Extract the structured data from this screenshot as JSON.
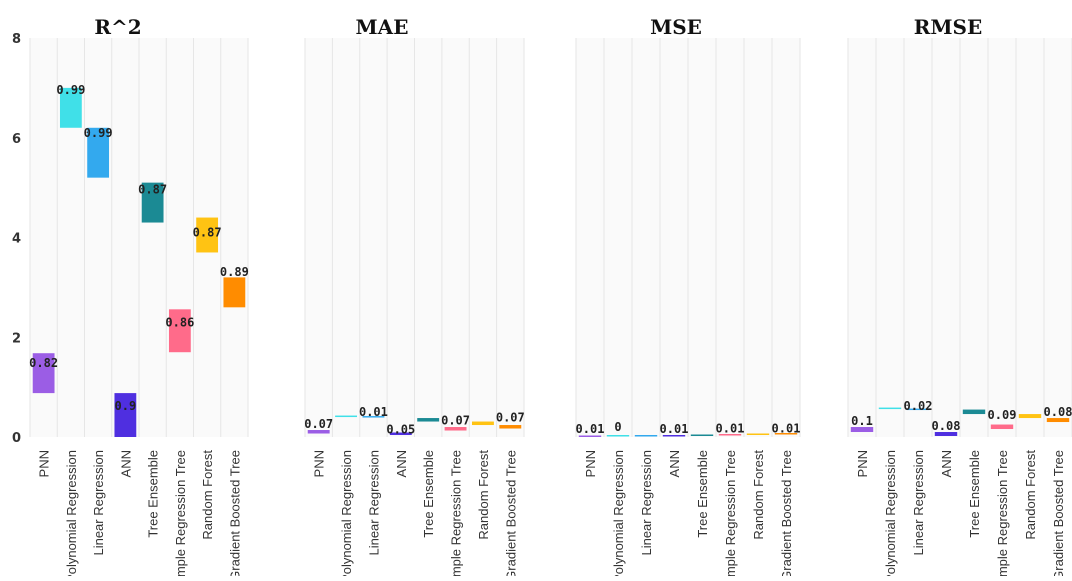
{
  "chart_data": [
    {
      "type": "bar",
      "title": "R^2",
      "categories": [
        "PNN",
        "Polynomial Regression",
        "Linear Regression",
        "ANN",
        "Tree Ensemble",
        "Simple Regression Tree",
        "Random Forest",
        "Gradient Boosted Tree"
      ],
      "values": [
        0.82,
        0.99,
        0.99,
        0.9,
        0.87,
        0.86,
        0.87,
        0.89
      ],
      "colors": [
        "#9b5de5",
        "#40e0e8",
        "#33a9ee",
        "#4f2fe0",
        "#1b8a94",
        "#ff6b8a",
        "#ffc313",
        "#ff8c00"
      ],
      "ylim": [
        0,
        8
      ],
      "yticks": [
        "0",
        "2",
        "4",
        "6",
        "8"
      ],
      "grid": true,
      "ranges": [
        [
          0.88,
          1.68
        ],
        [
          6.2,
          7.0
        ],
        [
          5.2,
          6.2
        ],
        [
          0,
          0.88
        ],
        [
          4.3,
          5.1
        ],
        [
          1.7,
          2.56
        ],
        [
          3.7,
          4.4
        ],
        [
          2.6,
          3.2
        ]
      ],
      "label_y": [
        1.48,
        6.96,
        6.1,
        0.62,
        4.96,
        2.3,
        4.1,
        3.31
      ]
    },
    {
      "type": "bar",
      "title": "MAE",
      "categories": [
        "PNN",
        "Polynomial Regression",
        "Linear Regression",
        "ANN",
        "Tree Ensemble",
        "Simple Regression Tree",
        "Random Forest",
        "Gradient Boosted Tree"
      ],
      "values": [
        0.07,
        0.01,
        0.01,
        0.05,
        0.07,
        0.07,
        0.07,
        0.07
      ],
      "labels": [
        "0.07",
        "",
        "0.01",
        "0.05",
        "",
        "0.07",
        "",
        "0.07"
      ],
      "colors": [
        "#9b5de5",
        "#40e0e8",
        "#33a9ee",
        "#4f2fe0",
        "#1b8a94",
        "#ff6b8a",
        "#ffc313",
        "#ff8c00"
      ],
      "ylim": [
        0,
        8
      ],
      "grid": true,
      "ranges": [
        [
          0.07,
          0.14
        ],
        [
          0.4,
          0.41
        ],
        [
          0.39,
          0.4
        ],
        [
          0.04,
          0.09
        ],
        [
          0.31,
          0.38
        ],
        [
          0.13,
          0.2
        ],
        [
          0.24,
          0.31
        ],
        [
          0.17,
          0.24
        ]
      ],
      "label_y": [
        0.26,
        null,
        0.5,
        0.15,
        null,
        0.33,
        null,
        0.39
      ]
    },
    {
      "type": "bar",
      "title": "MSE",
      "categories": [
        "PNN",
        "Polynomial Regression",
        "Linear Regression",
        "ANN",
        "Tree Ensemble",
        "Simple Regression Tree",
        "Random Forest",
        "Gradient Boosted Tree"
      ],
      "values": [
        0.01,
        0,
        0,
        0.01,
        0.01,
        0.01,
        0.01,
        0.01
      ],
      "labels": [
        "0.01",
        "0",
        "",
        "0.01",
        "",
        "0.01",
        "",
        "0.01"
      ],
      "colors": [
        "#9b5de5",
        "#40e0e8",
        "#33a9ee",
        "#4f2fe0",
        "#1b8a94",
        "#ff6b8a",
        "#ffc313",
        "#ff8c00"
      ],
      "ylim": [
        0,
        8
      ],
      "grid": true,
      "ranges": [
        [
          0,
          0.01
        ],
        [
          0.01,
          0.01
        ],
        [
          0.01,
          0.01
        ],
        [
          0.01,
          0.02
        ],
        [
          0.02,
          0.03
        ],
        [
          0.03,
          0.04
        ],
        [
          0.04,
          0.05
        ],
        [
          0.05,
          0.06
        ]
      ],
      "label_y": [
        0.16,
        0.2,
        null,
        0.16,
        null,
        0.17,
        null,
        0.17
      ]
    },
    {
      "type": "bar",
      "title": "RMSE",
      "categories": [
        "PNN",
        "Polynomial Regression",
        "Linear Regression",
        "ANN",
        "Tree Ensemble",
        "Simple Regression Tree",
        "Random Forest",
        "Gradient Boosted Tree"
      ],
      "values": [
        0.1,
        0.02,
        0.02,
        0.08,
        0.09,
        0.09,
        0.08,
        0.08
      ],
      "labels": [
        "0.1",
        "",
        "0.02",
        "0.08",
        "",
        "0.09",
        "",
        "0.08"
      ],
      "colors": [
        "#9b5de5",
        "#40e0e8",
        "#33a9ee",
        "#4f2fe0",
        "#1b8a94",
        "#ff6b8a",
        "#ffc313",
        "#ff8c00"
      ],
      "ylim": [
        0,
        8
      ],
      "grid": true,
      "ranges": [
        [
          0.1,
          0.2
        ],
        [
          0.56,
          0.58
        ],
        [
          0.54,
          0.56
        ],
        [
          0.02,
          0.1
        ],
        [
          0.46,
          0.55
        ],
        [
          0.16,
          0.25
        ],
        [
          0.38,
          0.46
        ],
        [
          0.3,
          0.38
        ]
      ],
      "label_y": [
        0.32,
        null,
        0.62,
        0.22,
        null,
        0.44,
        null,
        0.5
      ]
    }
  ]
}
